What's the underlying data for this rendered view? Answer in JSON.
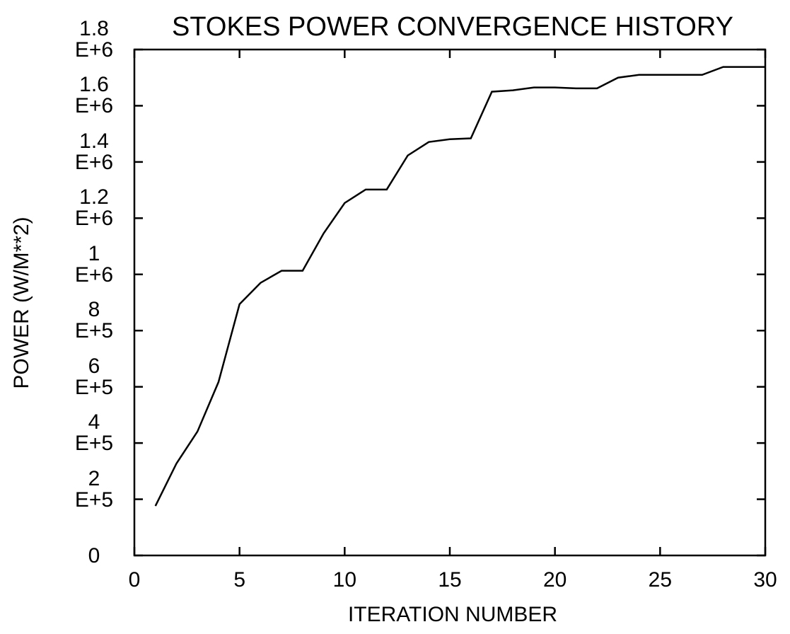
{
  "chart_data": {
    "type": "line",
    "title": "STOKES POWER CONVERGENCE HISTORY",
    "xlabel": "ITERATION NUMBER",
    "ylabel": "POWER (W/M**2)",
    "x": [
      1,
      2,
      3,
      4,
      5,
      6,
      7,
      8,
      9,
      10,
      11,
      12,
      13,
      14,
      15,
      16,
      17,
      18,
      19,
      20,
      21,
      22,
      23,
      24,
      25,
      26,
      27,
      28,
      29,
      30
    ],
    "series": [
      {
        "name": "Stokes power",
        "color": "#000000",
        "values": [
          176000,
          327000,
          441000,
          617000,
          894000,
          970000,
          1013000,
          1013000,
          1146000,
          1254000,
          1302000,
          1302000,
          1423000,
          1471000,
          1481000,
          1484000,
          1650000,
          1655000,
          1665000,
          1665000,
          1662000,
          1662000,
          1700000,
          1710000,
          1710000,
          1710000,
          1710000,
          1738000,
          1738000,
          1738000
        ]
      }
    ],
    "xlim": [
      0,
      30
    ],
    "xticks": [
      0,
      5,
      10,
      15,
      20,
      25,
      30
    ],
    "ylim": [
      0,
      1800000
    ],
    "yticks": [
      0,
      {
        "value": 200000,
        "label": "2\nE+5"
      },
      {
        "value": 400000,
        "label": "4\nE+5"
      },
      {
        "value": 600000,
        "label": "6\nE+5"
      },
      {
        "value": 800000,
        "label": "8\nE+5"
      },
      {
        "value": 1000000,
        "label": "1\nE+6"
      },
      {
        "value": 1200000,
        "label": "1.2\nE+6"
      },
      {
        "value": 1400000,
        "label": "1.4\nE+6"
      },
      {
        "value": 1600000,
        "label": "1.6\nE+6"
      },
      {
        "value": 1800000,
        "label": "1.8\nE+6"
      }
    ]
  }
}
